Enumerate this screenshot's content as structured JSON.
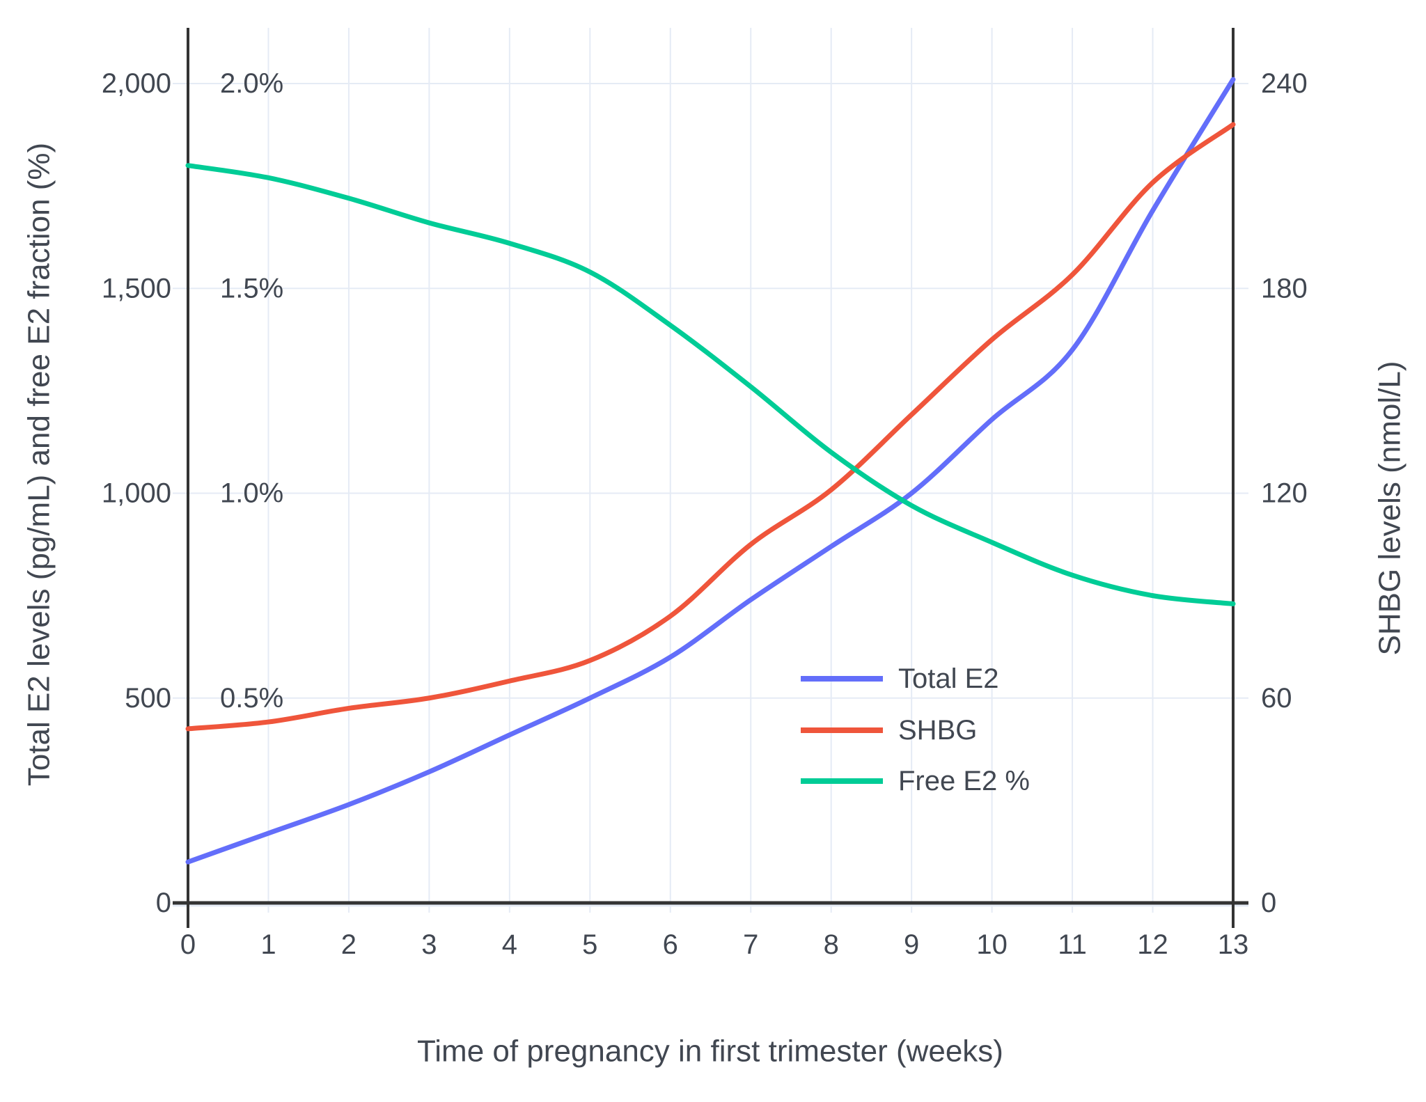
{
  "chart_data": {
    "type": "line",
    "xlabel": "Time of pregnancy in first trimester (weeks)",
    "ylabel_left": "Total E2 levels (pg/mL) and free E2 fraction (%)",
    "ylabel_right": "SHBG levels (nmol/L)",
    "x": [
      0,
      1,
      2,
      3,
      4,
      5,
      6,
      7,
      8,
      9,
      10,
      11,
      12,
      13
    ],
    "x_tick_labels": [
      "0",
      "1",
      "2",
      "3",
      "4",
      "5",
      "6",
      "7",
      "8",
      "9",
      "10",
      "11",
      "12",
      "13"
    ],
    "series": [
      {
        "name": "Total E2",
        "color": "#636EFA",
        "axis": "left",
        "units": "pg/mL",
        "values": [
          100,
          170,
          240,
          320,
          410,
          500,
          600,
          740,
          870,
          1000,
          1180,
          1350,
          1690,
          2010
        ]
      },
      {
        "name": "SHBG",
        "color": "#EF553B",
        "axis": "right",
        "units": "nmol/L",
        "values": [
          51,
          53,
          57,
          60,
          65,
          71,
          84,
          105,
          121,
          143,
          165,
          184,
          211,
          228
        ]
      },
      {
        "name": "Free E2 %",
        "color": "#00CC96",
        "axis": "left_percent",
        "units": "%",
        "values": [
          1.8,
          1.77,
          1.72,
          1.66,
          1.61,
          1.54,
          1.41,
          1.26,
          1.1,
          0.97,
          0.88,
          0.8,
          0.75,
          0.73
        ]
      }
    ],
    "left_ticks": [
      {
        "v": 0,
        "label": "0"
      },
      {
        "v": 500,
        "label": "500"
      },
      {
        "v": 1000,
        "label": "1,000"
      },
      {
        "v": 1500,
        "label": "1,500"
      },
      {
        "v": 2000,
        "label": "2,000"
      }
    ],
    "percent_annotations": [
      {
        "v": 500,
        "label": "0.5%"
      },
      {
        "v": 1000,
        "label": "1.0%"
      },
      {
        "v": 1500,
        "label": "1.5%"
      },
      {
        "v": 2000,
        "label": "2.0%"
      }
    ],
    "right_ticks": [
      {
        "v": 0,
        "label": "0"
      },
      {
        "v": 60,
        "label": "60"
      },
      {
        "v": 120,
        "label": "120"
      },
      {
        "v": 180,
        "label": "180"
      },
      {
        "v": 240,
        "label": "240"
      }
    ],
    "ylim_left": [
      0,
      2125
    ],
    "ylim_right": [
      0,
      255
    ],
    "xlim": [
      0,
      13
    ],
    "grid": true,
    "legend_position": "inside-right-middle",
    "colors": {
      "grid": "#E5EBF5",
      "axis": "#333333",
      "text": "#414751",
      "background": "#ffffff"
    }
  }
}
